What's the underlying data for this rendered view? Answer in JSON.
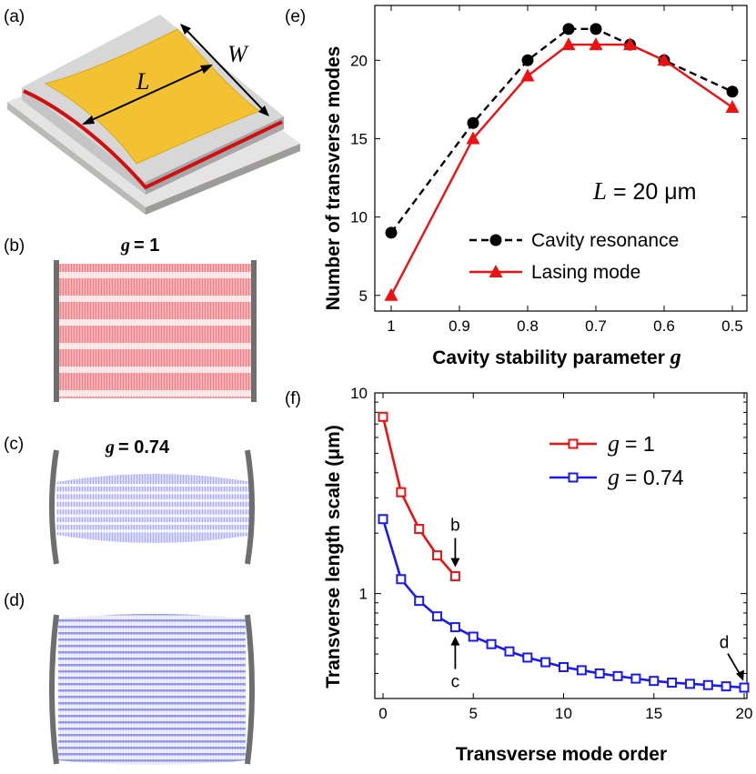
{
  "panel_labels": {
    "a": "(a)",
    "b": "(b)",
    "c": "(c)",
    "d": "(d)",
    "e": "(e)",
    "f": "(f)"
  },
  "device": {
    "length_label": "L",
    "width_label": "W"
  },
  "mode_panels": {
    "b": {
      "caption": "= 1",
      "var": "g"
    },
    "c": {
      "caption": "= 0.74",
      "var": "g"
    }
  },
  "colors": {
    "red": "#ee1111",
    "blue": "#1a1af0",
    "gold": "#f2c233",
    "mirror": "#6e6e6e"
  },
  "chart_data": [
    {
      "type": "line",
      "panel": "e",
      "xlabel_text": "Cavity stability parameter ",
      "xlabel_var": "g",
      "ylabel": "Number of transverse modes",
      "x_reversed": true,
      "xlim": [
        1.0,
        0.5
      ],
      "ylim": [
        4,
        23.5
      ],
      "xticks": [
        1,
        0.9,
        0.8,
        0.7,
        0.6,
        0.5
      ],
      "xtick_labels": [
        "1",
        "0.9",
        "0.8",
        "0.7",
        "0.6",
        "0.5"
      ],
      "yticks": [
        5,
        10,
        15,
        20
      ],
      "ytick_labels": [
        "5",
        "10",
        "15",
        "20"
      ],
      "annotation": {
        "var": "L",
        "text": " = 20 μm"
      },
      "series": [
        {
          "name": "Cavity resonance",
          "color": "#000000",
          "dash": true,
          "marker": "circle",
          "x": [
            1.0,
            0.88,
            0.8,
            0.74,
            0.7,
            0.65,
            0.6,
            0.5
          ],
          "y": [
            9,
            16,
            20,
            22,
            22,
            21,
            20,
            18
          ]
        },
        {
          "name": "Lasing mode",
          "color": "#ee1111",
          "dash": false,
          "marker": "triangle",
          "x": [
            1.0,
            0.88,
            0.8,
            0.74,
            0.7,
            0.65,
            0.6,
            0.5
          ],
          "y": [
            5,
            15,
            19,
            21,
            21,
            21,
            20,
            17
          ]
        }
      ]
    },
    {
      "type": "line",
      "panel": "f",
      "xlabel": "Transverse mode order",
      "ylabel": "Transverse length scale (μm)",
      "yscale": "log",
      "xlim": [
        0,
        20
      ],
      "ylim": [
        0.3,
        10
      ],
      "xticks": [
        0,
        5,
        10,
        15,
        20
      ],
      "xtick_labels": [
        "0",
        "5",
        "10",
        "15",
        "20"
      ],
      "yticks": [
        1,
        10
      ],
      "ytick_labels": [
        "1",
        "10"
      ],
      "annotations": [
        {
          "text": "b",
          "x": 4,
          "y": 1.22
        },
        {
          "text": "c",
          "x": 4,
          "y": 0.68
        },
        {
          "text": "d",
          "x": 20,
          "y": 0.345
        }
      ],
      "series": [
        {
          "name": "= 1",
          "var": "g",
          "color": "#ee1111",
          "marker": "square",
          "x": [
            0,
            1,
            2,
            3,
            4
          ],
          "y": [
            7.6,
            3.2,
            2.1,
            1.55,
            1.22
          ]
        },
        {
          "name": "= 0.74",
          "var": "g",
          "color": "#1a1af0",
          "marker": "square",
          "x": [
            0,
            1,
            2,
            3,
            4,
            5,
            6,
            7,
            8,
            9,
            10,
            11,
            12,
            13,
            14,
            15,
            16,
            17,
            18,
            19,
            20
          ],
          "y": [
            2.35,
            1.18,
            0.92,
            0.77,
            0.68,
            0.61,
            0.56,
            0.515,
            0.48,
            0.455,
            0.43,
            0.415,
            0.4,
            0.388,
            0.377,
            0.367,
            0.36,
            0.355,
            0.35,
            0.345,
            0.34
          ]
        }
      ]
    }
  ]
}
